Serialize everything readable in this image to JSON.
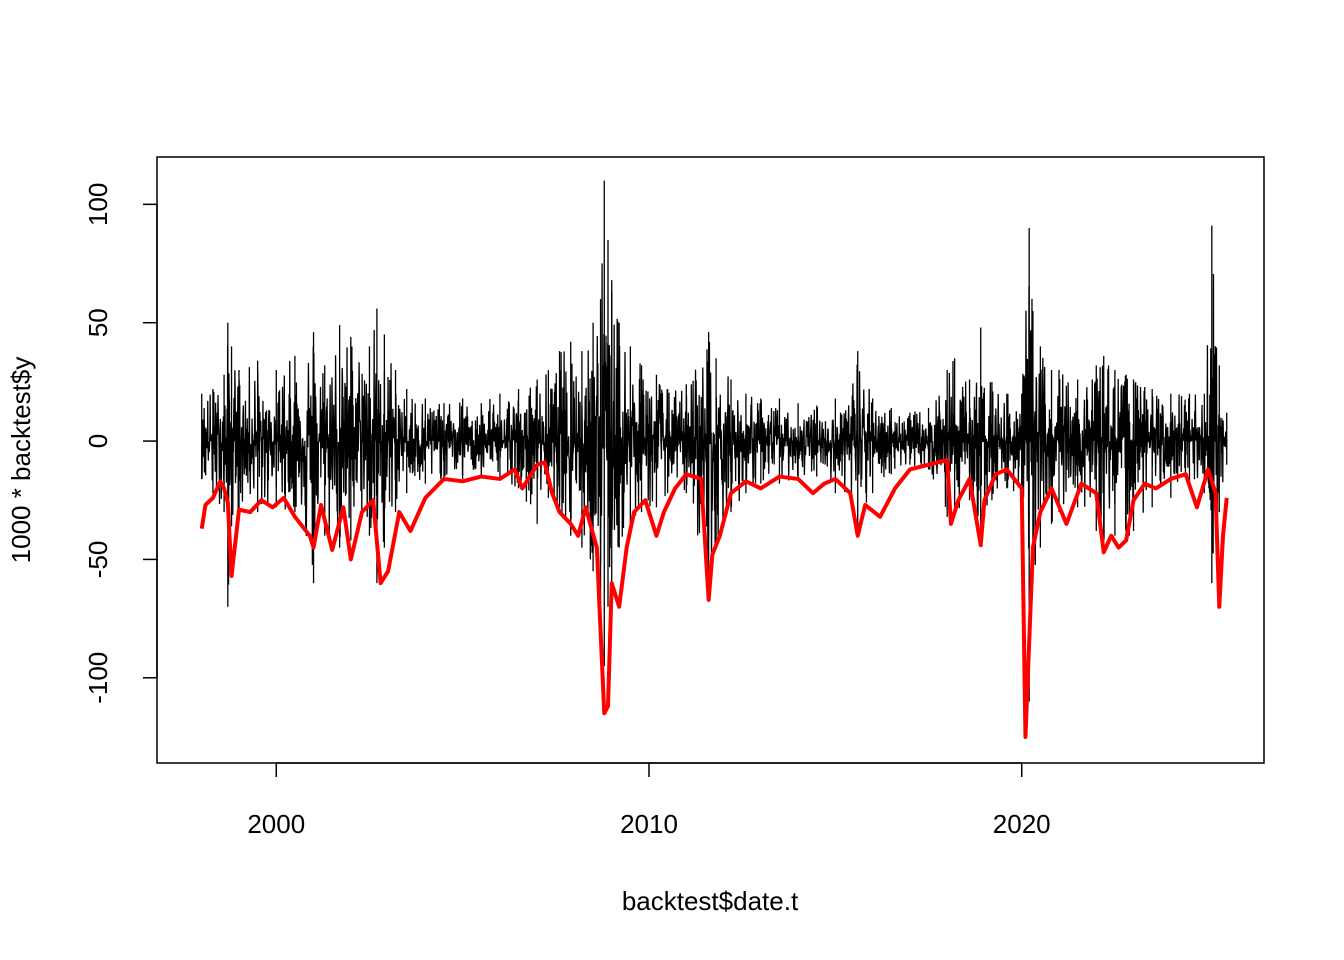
{
  "chart_data": {
    "type": "line",
    "title": "",
    "xlabel": "backtest$date.t",
    "ylabel": "1000 * backtest$y",
    "xlim": [
      1996.8,
      2026.5
    ],
    "ylim": [
      -136,
      120
    ],
    "x_ticks": [
      2000,
      2010,
      2020
    ],
    "x_tick_labels": [
      "2000",
      "2010",
      "2020"
    ],
    "y_ticks": [
      100,
      50,
      0,
      -50,
      -100
    ],
    "y_tick_labels": [
      "100",
      "50",
      "0",
      "-50",
      "-100"
    ],
    "grid": false,
    "legend": false,
    "series": [
      {
        "style": "spiky-line",
        "color": "#000000",
        "x": [
          1998.0,
          1998.3,
          1998.6,
          1998.7,
          1998.8,
          1999.0,
          1999.5,
          2000.0,
          2000.5,
          2001.0,
          2001.3,
          2001.7,
          2002.0,
          2002.5,
          2002.7,
          2002.9,
          2003.2,
          2003.5,
          2004.0,
          2004.5,
          2005.0,
          2005.5,
          2006.0,
          2006.5,
          2007.0,
          2007.3,
          2007.6,
          2007.9,
          2008.2,
          2008.5,
          2008.7,
          2008.8,
          2008.9,
          2009.0,
          2009.2,
          2009.5,
          2009.8,
          2010.2,
          2010.5,
          2011.0,
          2011.6,
          2011.8,
          2012.2,
          2012.6,
          2013.0,
          2013.5,
          2014.0,
          2014.5,
          2015.0,
          2015.6,
          2016.0,
          2016.5,
          2017.0,
          2017.5,
          2018.0,
          2018.2,
          2018.6,
          2018.9,
          2019.2,
          2019.6,
          2020.0,
          2020.2,
          2020.3,
          2020.5,
          2020.8,
          2021.0,
          2021.5,
          2022.0,
          2022.2,
          2022.5,
          2022.8,
          2023.0,
          2023.5,
          2024.0,
          2024.5,
          2024.9,
          2025.1,
          2025.3,
          2025.5
        ],
        "y_high": [
          20,
          22,
          28,
          50,
          40,
          30,
          34,
          30,
          36,
          46,
          32,
          49,
          44,
          40,
          56,
          45,
          30,
          22,
          18,
          16,
          18,
          16,
          20,
          22,
          26,
          30,
          38,
          42,
          38,
          50,
          60,
          110,
          85,
          68,
          50,
          40,
          32,
          28,
          22,
          24,
          46,
          35,
          26,
          20,
          18,
          18,
          16,
          15,
          18,
          38,
          18,
          14,
          12,
          14,
          30,
          35,
          26,
          48,
          25,
          20,
          20,
          90,
          55,
          40,
          30,
          30,
          26,
          32,
          36,
          30,
          28,
          26,
          22,
          20,
          20,
          20,
          91,
          32,
          12
        ],
        "y_low": [
          -16,
          -22,
          -30,
          -70,
          -36,
          -30,
          -30,
          -28,
          -30,
          -60,
          -40,
          -45,
          -42,
          -40,
          -60,
          -45,
          -30,
          -22,
          -18,
          -16,
          -16,
          -15,
          -16,
          -20,
          -35,
          -24,
          -28,
          -40,
          -45,
          -55,
          -80,
          -95,
          -70,
          -60,
          -45,
          -35,
          -30,
          -28,
          -22,
          -22,
          -68,
          -45,
          -30,
          -22,
          -18,
          -18,
          -16,
          -15,
          -22,
          -40,
          -22,
          -14,
          -10,
          -12,
          -32,
          -30,
          -25,
          -42,
          -25,
          -20,
          -24,
          -110,
          -60,
          -45,
          -35,
          -30,
          -28,
          -38,
          -45,
          -40,
          -42,
          -38,
          -28,
          -24,
          -20,
          -22,
          -60,
          -30,
          -10
        ]
      },
      {
        "style": "line",
        "color": "#ff0000",
        "x": [
          1998.0,
          1998.1,
          1998.3,
          1998.5,
          1998.6,
          1998.7,
          1998.8,
          1999.0,
          1999.3,
          1999.6,
          1999.9,
          2000.2,
          2000.5,
          2000.9,
          2001.0,
          2001.2,
          2001.5,
          2001.8,
          2002.0,
          2002.3,
          2002.6,
          2002.8,
          2003.0,
          2003.3,
          2003.6,
          2004.0,
          2004.5,
          2005.0,
          2005.5,
          2006.0,
          2006.4,
          2006.6,
          2007.0,
          2007.2,
          2007.4,
          2007.6,
          2007.9,
          2008.1,
          2008.3,
          2008.6,
          2008.8,
          2008.9,
          2009.0,
          2009.1,
          2009.2,
          2009.4,
          2009.6,
          2009.9,
          2010.2,
          2010.4,
          2010.7,
          2011.0,
          2011.4,
          2011.6,
          2011.7,
          2011.9,
          2012.2,
          2012.6,
          2013.0,
          2013.5,
          2014.0,
          2014.4,
          2014.7,
          2015.0,
          2015.4,
          2015.6,
          2015.8,
          2016.2,
          2016.6,
          2017.0,
          2017.5,
          2018.0,
          2018.1,
          2018.3,
          2018.6,
          2018.9,
          2019.0,
          2019.3,
          2019.6,
          2020.0,
          2020.1,
          2020.2,
          2020.3,
          2020.5,
          2020.8,
          2021.2,
          2021.6,
          2022.0,
          2022.2,
          2022.4,
          2022.6,
          2022.8,
          2023.0,
          2023.3,
          2023.6,
          2024.0,
          2024.4,
          2024.7,
          2025.0,
          2025.2,
          2025.3,
          2025.4,
          2025.5
        ],
        "y": [
          -37,
          -27,
          -24,
          -17,
          -20,
          -26,
          -57,
          -29,
          -30,
          -25,
          -28,
          -24,
          -32,
          -40,
          -45,
          -27,
          -46,
          -28,
          -50,
          -30,
          -25,
          -60,
          -55,
          -30,
          -38,
          -24,
          -16,
          -17,
          -15,
          -16,
          -12,
          -20,
          -10,
          -9,
          -22,
          -30,
          -35,
          -40,
          -28,
          -45,
          -115,
          -112,
          -60,
          -65,
          -70,
          -45,
          -30,
          -25,
          -40,
          -30,
          -20,
          -14,
          -16,
          -67,
          -48,
          -40,
          -22,
          -17,
          -20,
          -15,
          -16,
          -22,
          -18,
          -16,
          -22,
          -40,
          -27,
          -32,
          -20,
          -12,
          -10,
          -8,
          -35,
          -25,
          -16,
          -44,
          -25,
          -14,
          -12,
          -20,
          -125,
          -85,
          -45,
          -30,
          -20,
          -35,
          -18,
          -22,
          -47,
          -40,
          -45,
          -42,
          -25,
          -18,
          -20,
          -16,
          -14,
          -28,
          -12,
          -22,
          -70,
          -40,
          -24
        ]
      }
    ]
  }
}
